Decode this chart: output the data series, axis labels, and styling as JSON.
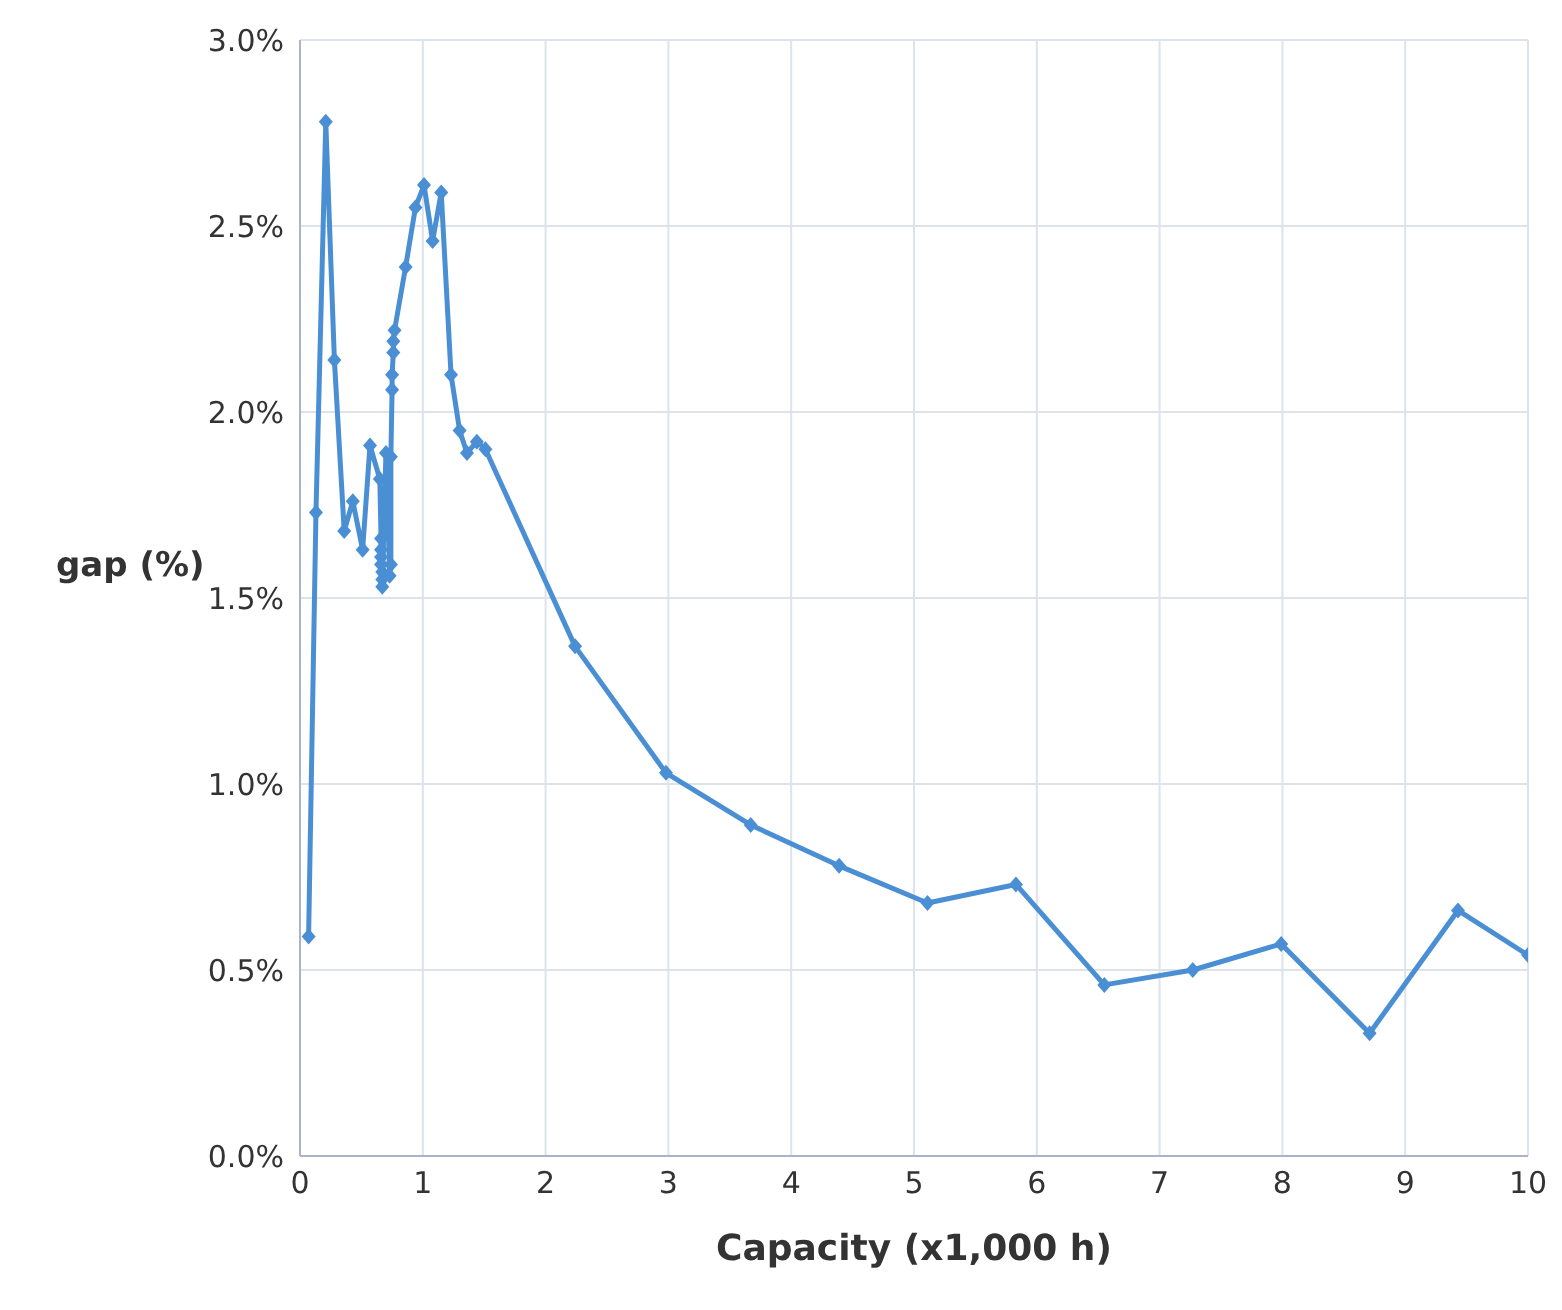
{
  "chart_data": {
    "type": "line",
    "xlabel": "Capacity (x1,000 h)",
    "ylabel": "gap (%)",
    "xlim": [
      0,
      10
    ],
    "xticks": [
      0,
      1,
      2,
      3,
      4,
      5,
      6,
      7,
      8,
      9,
      10
    ],
    "ylim": [
      0,
      3
    ],
    "yticks": [
      {
        "value": 0,
        "label": "0.0%"
      },
      {
        "value": 0.5,
        "label": "0.5%"
      },
      {
        "value": 1,
        "label": "1.0%"
      },
      {
        "value": 1.5,
        "label": "1.5%"
      },
      {
        "value": 2,
        "label": "2.0%"
      },
      {
        "value": 2.5,
        "label": "2.5%"
      },
      {
        "value": 3,
        "label": "3.0%"
      }
    ],
    "grid": true,
    "marker": "diamond",
    "line_style": "solid",
    "series": [
      {
        "color": "#4a8fd4",
        "x": [
          0.07,
          0.13,
          0.21,
          0.28,
          0.36,
          0.43,
          0.51,
          0.57,
          0.65,
          0.66,
          0.66,
          0.66,
          0.66,
          0.67,
          0.67,
          0.67,
          0.7,
          0.73,
          0.74,
          0.74,
          0.75,
          0.75,
          0.76,
          0.76,
          0.77,
          0.86,
          0.94,
          1.01,
          1.08,
          1.15,
          1.23,
          1.3,
          1.36,
          1.44,
          1.51,
          2.24,
          2.98,
          3.67,
          4.39,
          5.11,
          5.83,
          6.55,
          7.27,
          7.99,
          8.71,
          9.43,
          10
        ],
        "values": [
          0.59,
          1.73,
          2.78,
          2.14,
          1.68,
          1.76,
          1.63,
          1.91,
          1.82,
          1.66,
          1.63,
          1.61,
          1.59,
          1.57,
          1.55,
          1.53,
          1.89,
          1.56,
          1.59,
          1.88,
          2.06,
          2.1,
          2.16,
          2.19,
          2.22,
          2.39,
          2.55,
          2.61,
          2.46,
          2.59,
          2.1,
          1.95,
          1.89,
          1.92,
          1.9,
          1.37,
          1.03,
          0.89,
          0.78,
          0.68,
          0.73,
          0.46,
          0.5,
          0.57,
          0.33,
          0.66,
          0.54
        ]
      }
    ]
  }
}
